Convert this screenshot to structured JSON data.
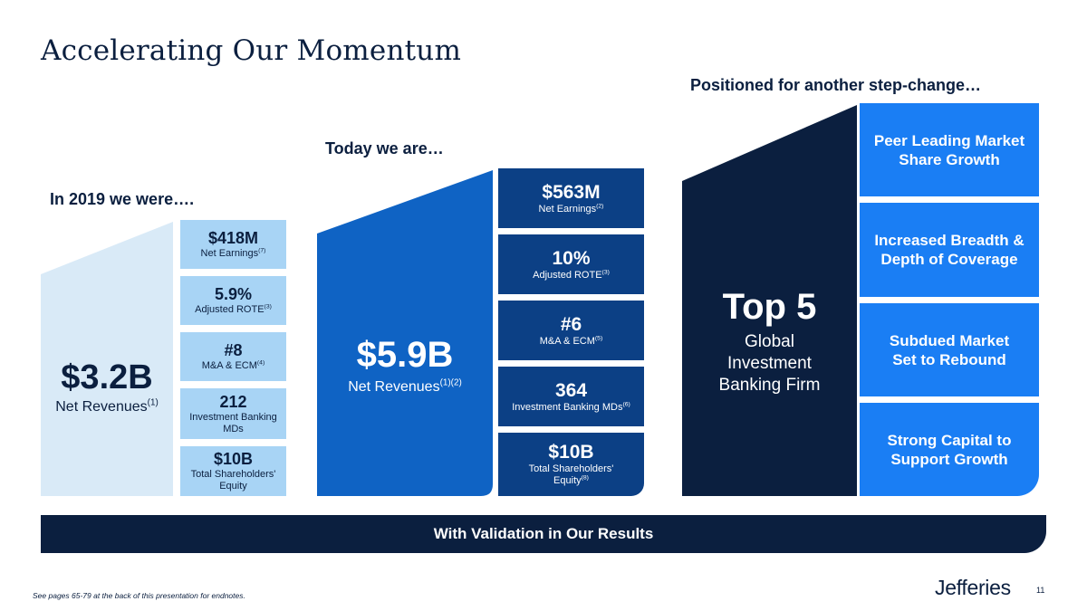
{
  "title": "Accelerating Our Momentum",
  "headings": {
    "past": "In 2019 we were….",
    "today": "Today we are…",
    "future": "Positioned for another step-change…"
  },
  "past": {
    "value": "$3.2B",
    "label": "Net Revenues",
    "label_sup": "(1)",
    "metrics": [
      {
        "value": "$418M",
        "label": "Net Earnings",
        "sup": "(7)"
      },
      {
        "value": "5.9%",
        "label": "Adjusted ROTE",
        "sup": "(3)"
      },
      {
        "value": "#8",
        "label": "M&A & ECM",
        "sup": "(4)"
      },
      {
        "value": "212",
        "label": "Investment Banking MDs",
        "sup": ""
      },
      {
        "value": "$10B",
        "label": "Total Shareholders' Equity",
        "sup": ""
      }
    ]
  },
  "today": {
    "value": "$5.9B",
    "label": "Net Revenues",
    "label_sup": "(1)(2)",
    "metrics": [
      {
        "value": "$563M",
        "label": "Net Earnings",
        "sup": "(2)"
      },
      {
        "value": "10%",
        "label": "Adjusted ROTE",
        "sup": "(3)"
      },
      {
        "value": "#6",
        "label": "M&A & ECM",
        "sup": "(5)"
      },
      {
        "value": "364",
        "label": "Investment Banking MDs",
        "sup": "(6)"
      },
      {
        "value": "$10B",
        "label": "Total Shareholders' Equity",
        "sup": "(8)"
      }
    ]
  },
  "future": {
    "value": "Top 5",
    "label": "Global Investment Banking Firm",
    "items": [
      "Peer Leading Market Share Growth",
      "Increased Breadth & Depth of Coverage",
      "Subdued Market Set to Rebound",
      "Strong Capital to Support Growth"
    ]
  },
  "banner": "With Validation in Our Results",
  "footnote": "See pages 65-79 at the back of this presentation for endnotes.",
  "logo": "Jefferies",
  "page_number": "11",
  "colors": {
    "navy": "#0b1f3f",
    "light_blue": "#d9eaf7",
    "sky_blue": "#a8d4f5",
    "mid_blue": "#0f63c4",
    "dark_blue": "#0c4085",
    "bright_blue": "#1a7ef4"
  }
}
